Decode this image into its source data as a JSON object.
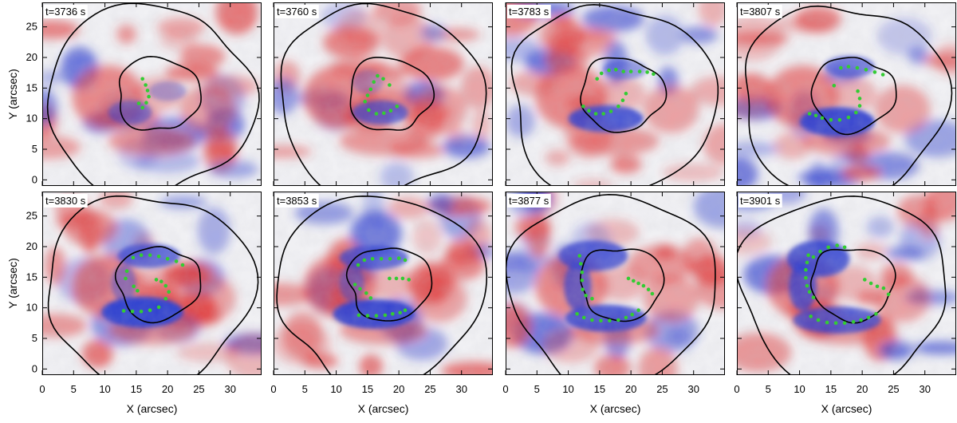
{
  "figure": {
    "description_kind": "solar sunspot Doppler velocity maps",
    "colors": {
      "redshift": "#e23a3a",
      "blueshift": "#2f3fd0",
      "neutral": "#f3f3f6",
      "contour": "#000000",
      "markers": "#33cc33"
    }
  },
  "axes": {
    "xlabel": "X (arcsec)",
    "ylabel": "Y (arcsec)",
    "xlim": [
      0,
      35
    ],
    "ylim": [
      -1,
      29
    ],
    "xticks": [
      "0",
      "5",
      "10",
      "15",
      "20",
      "25",
      "30"
    ],
    "yticks": [
      "0",
      "5",
      "10",
      "15",
      "20",
      "25"
    ]
  },
  "panels": [
    {
      "label": "t=3736 s",
      "markers": "arc1"
    },
    {
      "label": "t=3760 s",
      "markers": "arc2"
    },
    {
      "label": "t=3783 s",
      "markers": "arc3"
    },
    {
      "label": "t=3807 s",
      "markers": "arc4"
    },
    {
      "label": "t=3830 s",
      "markers": "arc5"
    },
    {
      "label": "t=3853 s",
      "markers": "arc6"
    },
    {
      "label": "t=3877 s",
      "markers": "arc7"
    },
    {
      "label": "t=3901 s",
      "markers": "arc8"
    }
  ]
}
